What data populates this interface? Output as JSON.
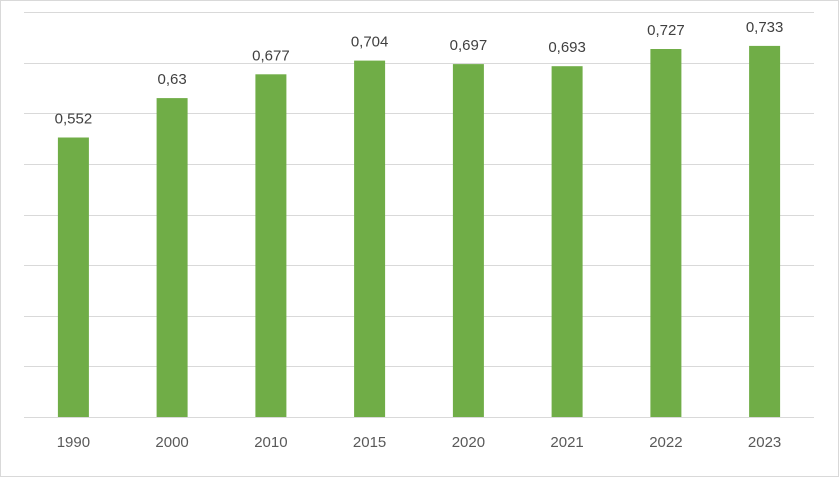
{
  "chart_data": {
    "type": "bar",
    "categories": [
      "1990",
      "2000",
      "2010",
      "2015",
      "2020",
      "2021",
      "2022",
      "2023"
    ],
    "values": [
      0.552,
      0.63,
      0.677,
      0.704,
      0.697,
      0.693,
      0.727,
      0.733
    ],
    "data_labels": [
      "0,552",
      "0,63",
      "0,677",
      "0,704",
      "0,697",
      "0,693",
      "0,727",
      "0,733"
    ],
    "title": "",
    "xlabel": "",
    "ylabel": "",
    "ylim": [
      0,
      0.8
    ],
    "y_axis_labels_shown": false,
    "grid": true,
    "legend": "none",
    "bar_color": "#70ad47",
    "grid_color": "#d9d9d9"
  }
}
